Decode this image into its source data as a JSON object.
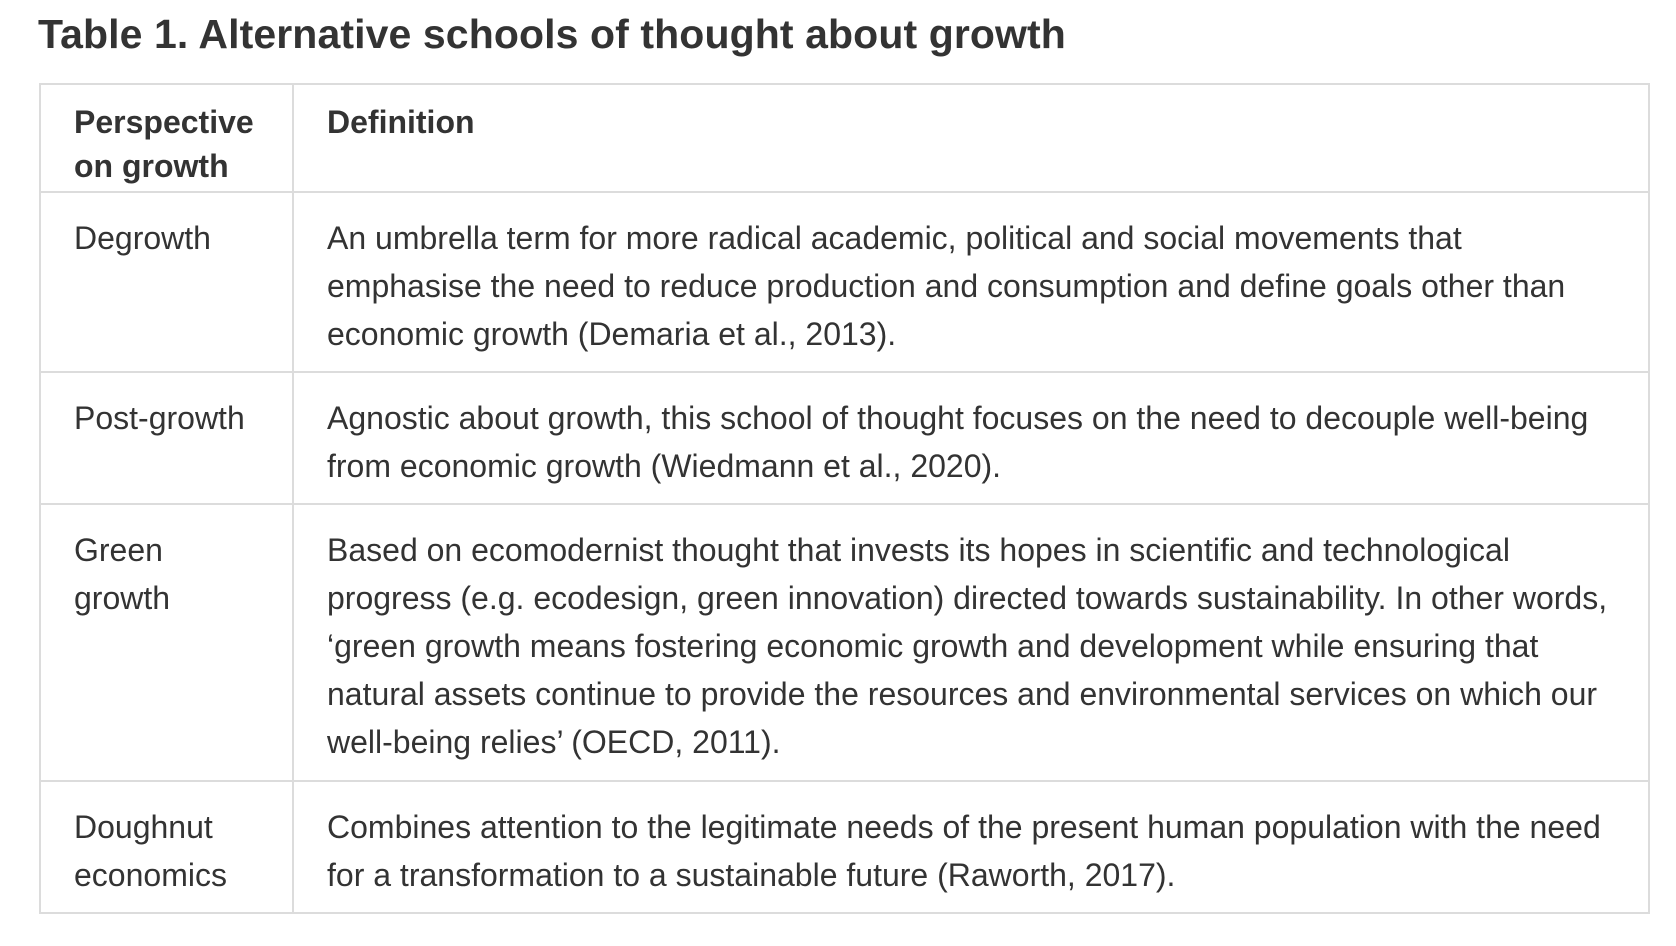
{
  "title": "Table 1. Alternative schools of thought about growth",
  "table": {
    "headers": [
      "Perspective on growth",
      "Definition"
    ],
    "rows": [
      {
        "perspective": "Degrowth",
        "definition": "An umbrella term for more radical academic, political and social movements that emphasise the need to reduce production and consumption and define goals other than economic growth  (Demaria et al., 2013)."
      },
      {
        "perspective": "Post-growth",
        "definition": "Agnostic about growth, this school of thought focuses on the need to decouple well-being from economic growth (Wiedmann et al., 2020)."
      },
      {
        "perspective": "Green growth",
        "definition": "Based on ecomodernist thought that invests its hopes in scientific and technological progress (e.g. ecodesign, green innovation) directed towards sustainability. In other words, ‘green growth means fostering economic growth and development while ensuring that natural assets continue to provide the resources and environmental services on which our well-being relies’ (OECD, 2011)."
      },
      {
        "perspective": "Doughnut economics",
        "definition": "Combines attention to the legitimate needs of the present human population with the need for a transformation to a sustainable future (Raworth, 2017)."
      }
    ]
  }
}
